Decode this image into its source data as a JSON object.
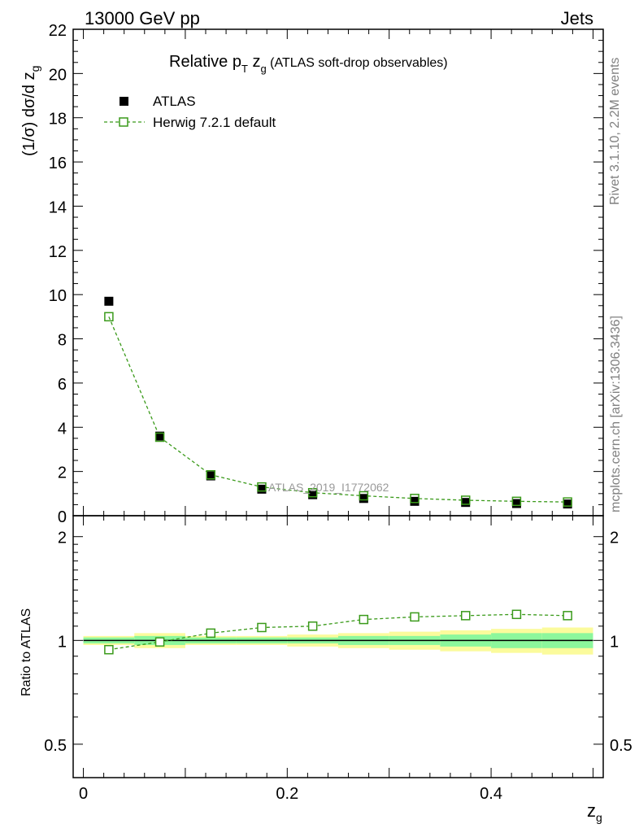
{
  "header": {
    "left": "13000 GeV pp",
    "right": "Jets"
  },
  "side_text": {
    "rivet": "Rivet 3.1.10,  2.2M events",
    "mcplots": "mcplots.cern.ch [arXiv:1306.3436]"
  },
  "title": {
    "pre": "Relative p",
    "sub1": "T",
    "mid": " z",
    "sub2": "g",
    "post": " (ATLAS soft-drop observables)"
  },
  "watermark": "ATLAS_2019_I1772062",
  "upper_ylabel": {
    "main": "(1/σ) dσ/d z",
    "sub": "g"
  },
  "lower_ylabel": "Ratio to ATLAS",
  "xlabel": {
    "main": "z",
    "sub": "g"
  },
  "colors": {
    "data": "#000000",
    "mc": "#3a9a1a",
    "band_inner": "#8cf79c",
    "band_outer": "#fbfb9c"
  },
  "chart_data": {
    "type": "scatter",
    "x_edges": [
      0.0,
      0.05,
      0.1,
      0.15,
      0.2,
      0.25,
      0.3,
      0.35,
      0.4,
      0.45,
      0.5
    ],
    "x": [
      0.025,
      0.075,
      0.125,
      0.175,
      0.225,
      0.275,
      0.325,
      0.375,
      0.425,
      0.475
    ],
    "series": [
      {
        "name": "ATLAS",
        "values": [
          9.7,
          3.6,
          1.8,
          1.2,
          0.95,
          0.78,
          0.65,
          0.6,
          0.55,
          0.53
        ],
        "marker": "filled-square"
      },
      {
        "name": "Herwig 7.2.1 default",
        "values": [
          9.0,
          3.55,
          1.85,
          1.3,
          1.04,
          0.9,
          0.78,
          0.7,
          0.65,
          0.62
        ],
        "marker": "open-square",
        "line": "dashed"
      }
    ],
    "ratio": {
      "values": [
        0.94,
        0.99,
        1.05,
        1.09,
        1.1,
        1.15,
        1.17,
        1.18,
        1.19,
        1.18
      ],
      "band_inner": [
        0.02,
        0.03,
        0.02,
        0.02,
        0.02,
        0.03,
        0.03,
        0.04,
        0.05,
        0.05
      ],
      "band_outer": [
        0.03,
        0.05,
        0.03,
        0.03,
        0.04,
        0.05,
        0.06,
        0.07,
        0.08,
        0.09
      ]
    },
    "xlim": [
      -0.01,
      0.51
    ],
    "ylim": [
      0,
      22
    ],
    "ratio_ylim": [
      0.4,
      2.3
    ],
    "ratio_ylog": true,
    "x_ticks": [
      "0",
      "0.2",
      "0.4"
    ],
    "y_ticks": [
      "0",
      "2",
      "4",
      "6",
      "8",
      "10",
      "12",
      "14",
      "16",
      "18",
      "20",
      "22"
    ],
    "ratio_y_ticks": [
      "0.5",
      "1",
      "2"
    ],
    "legend_position": "top-left"
  }
}
